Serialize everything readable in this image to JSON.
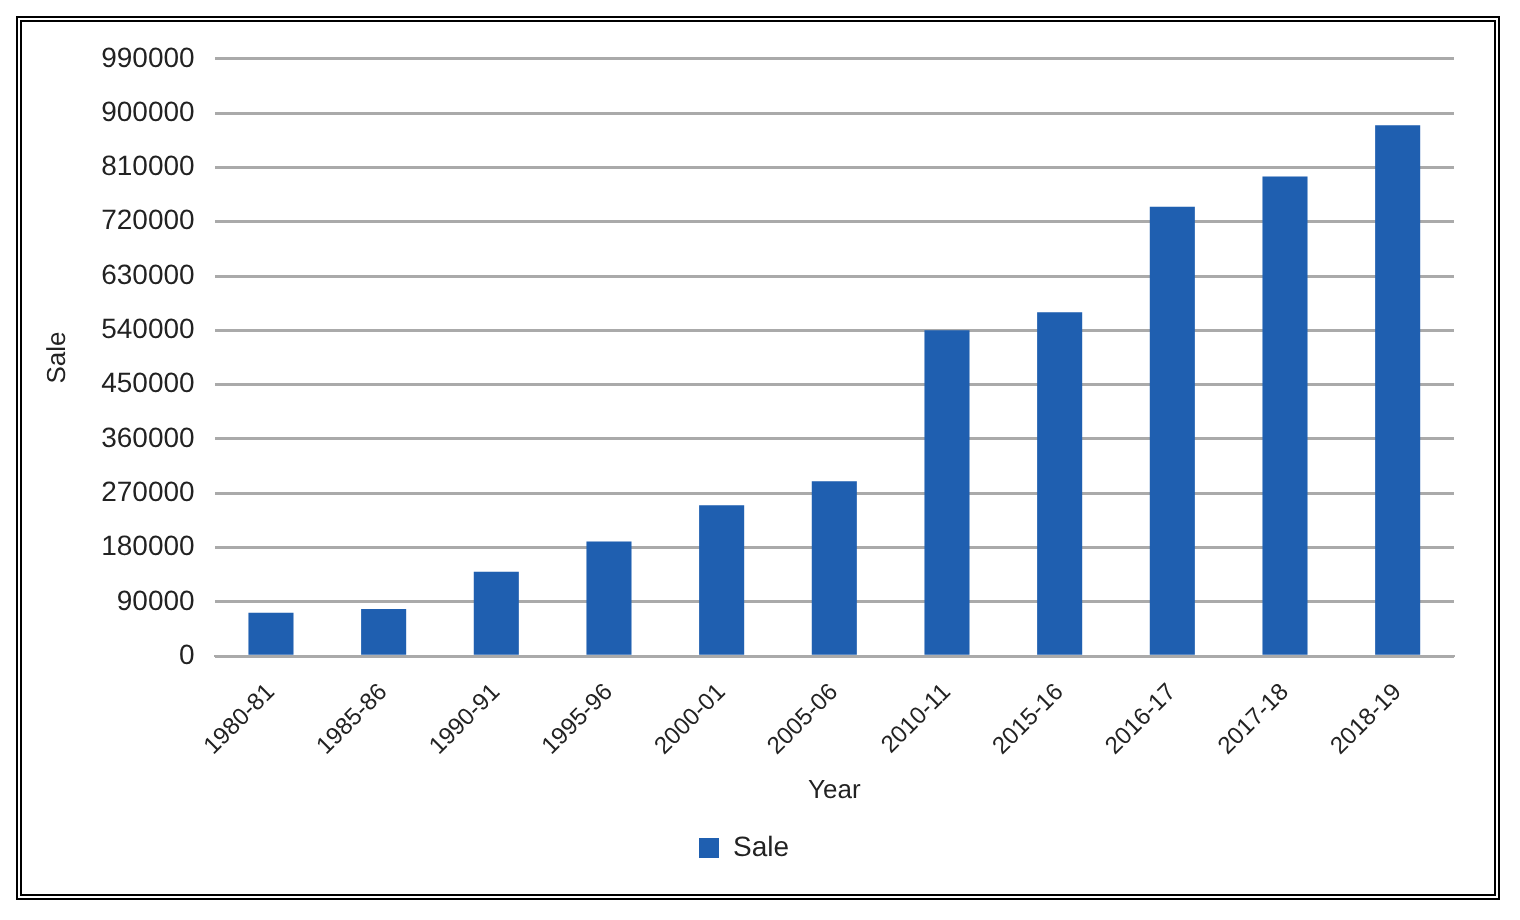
{
  "chart_data": {
    "type": "bar",
    "xlabel": "Year",
    "ylabel": "Sale",
    "categories": [
      "1980-81",
      "1985-86",
      "1990-91",
      "1995-96",
      "2000-01",
      "2005-06",
      "2010-11",
      "2015-16",
      "2016-17",
      "2017-18",
      "2018-19"
    ],
    "series": [
      {
        "name": "Sale",
        "color": "#1f5fb0",
        "values": [
          72000,
          78000,
          140000,
          190000,
          250000,
          290000,
          540000,
          570000,
          745000,
          795000,
          880000
        ]
      }
    ],
    "ylim": [
      0,
      990000
    ],
    "yticks": [
      0,
      90000,
      180000,
      270000,
      360000,
      450000,
      540000,
      630000,
      720000,
      810000,
      900000,
      990000
    ],
    "grid": "y",
    "legend": "bottom"
  }
}
